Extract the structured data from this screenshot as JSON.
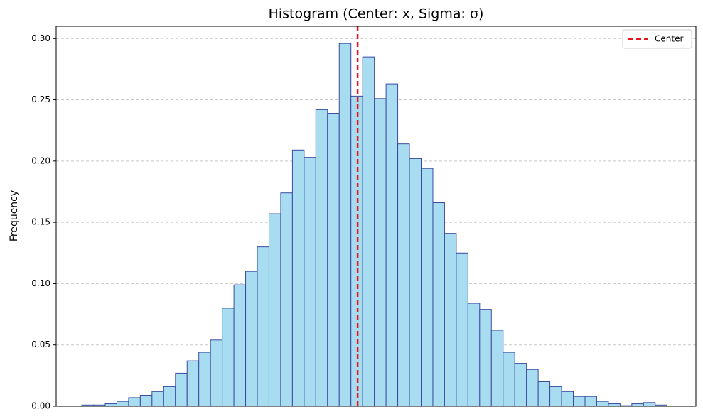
{
  "chart_data": {
    "type": "histogram",
    "title": "Histogram (Center: x, Sigma: σ)",
    "y_label": "Frequency",
    "bins": [
      -4.95,
      -4.74,
      -4.53,
      -4.32,
      -4.11,
      -3.9,
      -3.69,
      -3.48,
      -3.27,
      -3.06,
      -2.85,
      -2.64,
      -2.43,
      -2.22,
      -2.01,
      -1.8,
      -1.59,
      -1.38,
      -1.17,
      -0.96,
      -0.75,
      -0.54,
      -0.33,
      -0.12,
      0.09,
      0.3,
      0.51,
      0.72,
      0.93,
      1.14,
      1.35,
      1.56,
      1.77,
      1.98,
      2.19,
      2.4,
      2.61,
      2.82,
      3.03,
      3.24,
      3.45,
      3.66,
      3.87,
      4.08,
      4.29,
      4.5,
      4.71,
      4.92,
      5.13,
      5.34,
      5.55
    ],
    "values": [
      0.001,
      0.001,
      0.002,
      0.004,
      0.007,
      0.009,
      0.012,
      0.016,
      0.027,
      0.037,
      0.044,
      0.054,
      0.08,
      0.099,
      0.11,
      0.13,
      0.157,
      0.174,
      0.209,
      0.203,
      0.242,
      0.239,
      0.296,
      0.253,
      0.285,
      0.251,
      0.263,
      0.214,
      0.202,
      0.194,
      0.166,
      0.141,
      0.125,
      0.084,
      0.079,
      0.062,
      0.044,
      0.035,
      0.03,
      0.02,
      0.016,
      0.012,
      0.008,
      0.008,
      0.004,
      0.002,
      0.0005,
      0.002,
      0.003,
      0.001
    ],
    "color": "#a8dcf0",
    "edge_color": "#3a4aa0",
    "center_line": {
      "name": "Center",
      "x": 0,
      "color": "#e8161b"
    },
    "xlim": [
      -5.41,
      6.07
    ],
    "ylim": [
      0,
      0.31
    ],
    "yticks": [
      {
        "value": 0,
        "label": "0.00"
      },
      {
        "value": 0.05,
        "label": "0.05"
      },
      {
        "value": 0.1,
        "label": "0.10"
      },
      {
        "value": 0.15,
        "label": "0.15"
      },
      {
        "value": 0.2,
        "label": "0.20"
      },
      {
        "value": 0.25,
        "label": "0.25"
      },
      {
        "value": 0.3,
        "label": "0.30"
      }
    ],
    "grid": true,
    "legend": "upper right"
  }
}
